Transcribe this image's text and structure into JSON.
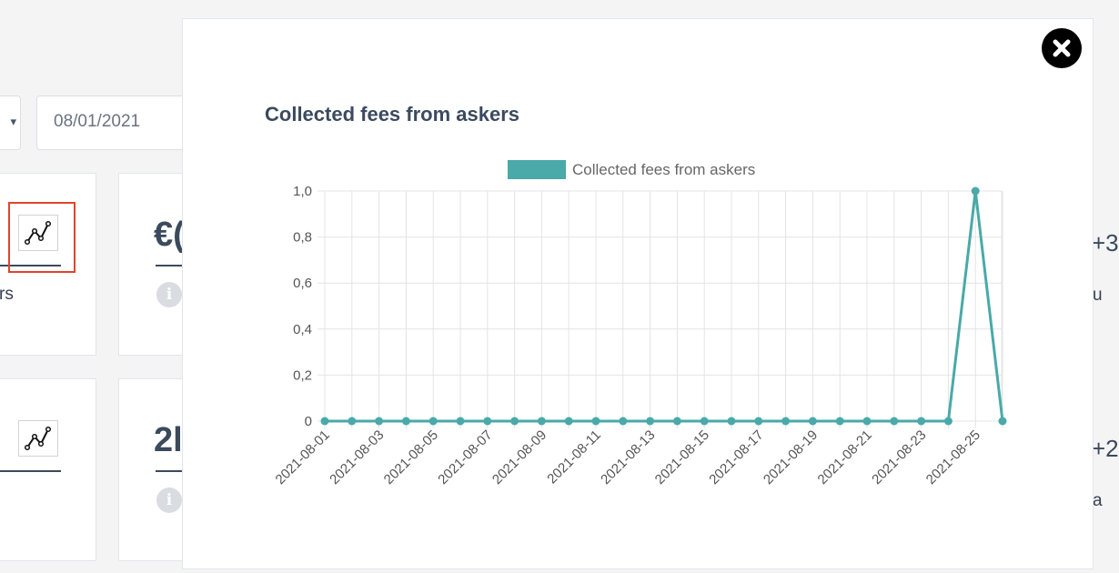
{
  "filters": {
    "date_value": "08/01/2021",
    "select_caret": "▾"
  },
  "background_cards": {
    "card1_fragment": "rs",
    "card2_value_fragment": "€(",
    "card3_value_fragment": "2l",
    "right_fragment_1": "+3",
    "right_fragment_2": "u",
    "right_fragment_3": "+2",
    "right_fragment_4": "a",
    "info_glyph": "i"
  },
  "modal": {
    "title": "Collected fees from askers",
    "close_icon": "close-icon"
  },
  "chart_data": {
    "type": "line",
    "title": "Collected fees from askers",
    "legend": [
      "Collected fees from askers"
    ],
    "legend_position": "top-center",
    "xlabel": "",
    "ylabel": "",
    "ylim": [
      0,
      1
    ],
    "yticks": [
      "0",
      "0,2",
      "0,4",
      "0,6",
      "0,8",
      "1,0"
    ],
    "grid": true,
    "color": "#4aa9a9",
    "x": [
      "2021-08-01",
      "2021-08-02",
      "2021-08-03",
      "2021-08-04",
      "2021-08-05",
      "2021-08-06",
      "2021-08-07",
      "2021-08-08",
      "2021-08-09",
      "2021-08-10",
      "2021-08-11",
      "2021-08-12",
      "2021-08-13",
      "2021-08-14",
      "2021-08-15",
      "2021-08-16",
      "2021-08-17",
      "2021-08-18",
      "2021-08-19",
      "2021-08-20",
      "2021-08-21",
      "2021-08-22",
      "2021-08-23",
      "2021-08-24",
      "2021-08-25",
      "2021-08-26"
    ],
    "xtick_labels": [
      "2021-08-01",
      "2021-08-03",
      "2021-08-05",
      "2021-08-07",
      "2021-08-09",
      "2021-08-11",
      "2021-08-13",
      "2021-08-15",
      "2021-08-17",
      "2021-08-19",
      "2021-08-21",
      "2021-08-23",
      "2021-08-25"
    ],
    "series": [
      {
        "name": "Collected fees from askers",
        "values": [
          0,
          0,
          0,
          0,
          0,
          0,
          0,
          0,
          0,
          0,
          0,
          0,
          0,
          0,
          0,
          0,
          0,
          0,
          0,
          0,
          0,
          0,
          0,
          0,
          1,
          0
        ]
      }
    ]
  }
}
